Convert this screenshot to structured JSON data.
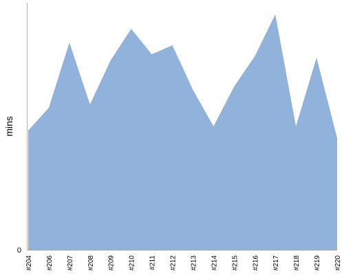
{
  "chart_data": {
    "type": "area",
    "title": "",
    "xlabel": "",
    "ylabel": "mins",
    "categories": [
      "#204",
      "#206",
      "#207",
      "#208",
      "#209",
      "#210",
      "#211",
      "#212",
      "#213",
      "#214",
      "#215",
      "#216",
      "#217",
      "#218",
      "#219",
      "#220"
    ],
    "series": [
      {
        "values": [
          174,
          207,
          302,
          212,
          276,
          322,
          285,
          298,
          233,
          180,
          238,
          282,
          343,
          180,
          280,
          163
        ]
      }
    ],
    "y_tick_labels": [
      "0"
    ],
    "ylim": [
      0,
      360
    ],
    "grid": false,
    "legend": "none",
    "colors": {
      "area_fill": "#91b3db",
      "axis": "#b0b0b0",
      "tick_text": "#000000",
      "label_text": "#000000"
    }
  }
}
